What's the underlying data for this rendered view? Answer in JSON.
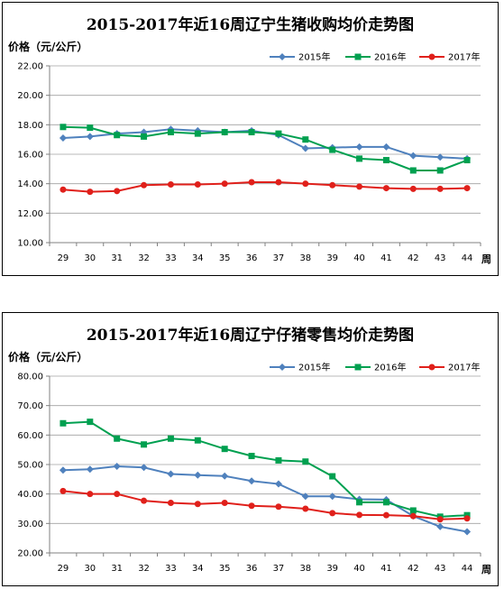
{
  "chart_data": [
    {
      "type": "line",
      "title": "2015-2017年近16周辽宁生猪收购均价走势图",
      "ylabel": "价格（元/公斤）",
      "xunit": "周",
      "categories": [
        "29",
        "30",
        "31",
        "32",
        "33",
        "34",
        "35",
        "36",
        "37",
        "38",
        "39",
        "40",
        "41",
        "42",
        "43",
        "44"
      ],
      "ylim": [
        10,
        22
      ],
      "yticks": [
        "10.00",
        "12.00",
        "14.00",
        "16.00",
        "18.00",
        "20.00",
        "22.00"
      ],
      "grid": true,
      "legend_position": "top-right",
      "series": [
        {
          "name": "2015年",
          "color": "#4F81BD",
          "marker": "diamond",
          "values": [
            17.1,
            17.2,
            17.4,
            17.5,
            17.7,
            17.6,
            17.5,
            17.6,
            17.3,
            16.4,
            16.45,
            16.5,
            16.5,
            15.9,
            15.8,
            15.7
          ]
        },
        {
          "name": "2016年",
          "color": "#00A050",
          "marker": "square",
          "values": [
            17.85,
            17.8,
            17.3,
            17.2,
            17.5,
            17.4,
            17.5,
            17.5,
            17.4,
            17.0,
            16.3,
            15.7,
            15.6,
            14.9,
            14.9,
            15.6
          ]
        },
        {
          "name": "2017年",
          "color": "#E0201B",
          "marker": "circle",
          "values": [
            13.6,
            13.45,
            13.5,
            13.9,
            13.95,
            13.95,
            14.0,
            14.1,
            14.1,
            14.0,
            13.9,
            13.8,
            13.7,
            13.65,
            13.65,
            13.7
          ]
        }
      ]
    },
    {
      "type": "line",
      "title": "2015-2017年近16周辽宁仔猪零售均价走势图",
      "ylabel": "价格（元/公斤）",
      "xunit": "周",
      "categories": [
        "29",
        "30",
        "31",
        "32",
        "33",
        "34",
        "35",
        "36",
        "37",
        "38",
        "39",
        "40",
        "41",
        "42",
        "43",
        "44"
      ],
      "ylim": [
        20,
        80
      ],
      "yticks": [
        "20.00",
        "30.00",
        "40.00",
        "50.00",
        "60.00",
        "70.00",
        "80.00"
      ],
      "grid": true,
      "legend_position": "top-right",
      "series": [
        {
          "name": "2015年",
          "color": "#4F81BD",
          "marker": "diamond",
          "values": [
            48.1,
            48.4,
            49.4,
            49.0,
            46.8,
            46.4,
            46.1,
            44.4,
            43.4,
            39.2,
            39.2,
            38.2,
            38.1,
            32.5,
            28.9,
            27.2
          ]
        },
        {
          "name": "2016年",
          "color": "#00A050",
          "marker": "square",
          "values": [
            64.0,
            64.5,
            58.8,
            56.8,
            58.8,
            58.2,
            55.3,
            52.9,
            51.4,
            51.0,
            46.0,
            37.2,
            37.2,
            34.4,
            32.3,
            32.8
          ]
        },
        {
          "name": "2017年",
          "color": "#E0201B",
          "marker": "circle",
          "values": [
            41.0,
            40.0,
            40.0,
            37.7,
            37.0,
            36.6,
            37.0,
            36.0,
            35.7,
            35.0,
            33.5,
            32.9,
            32.8,
            32.5,
            31.4,
            31.7
          ]
        }
      ]
    }
  ]
}
